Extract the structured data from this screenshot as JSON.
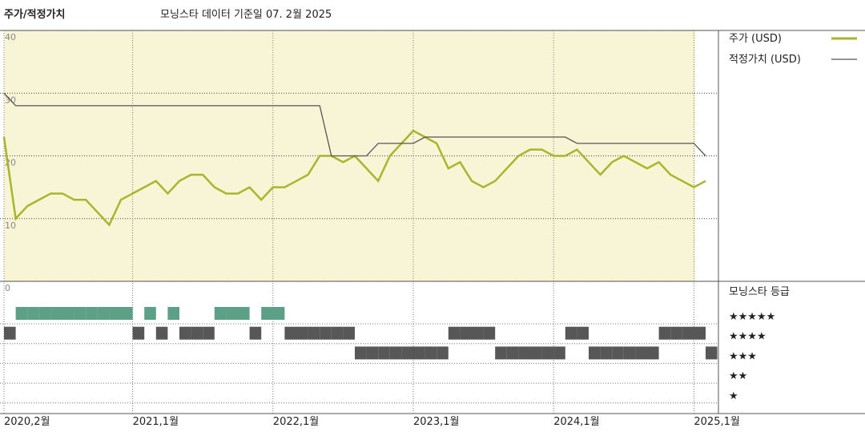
{
  "chart_data": {
    "type": "line",
    "title": "주가/적정가치",
    "subtitle": "모닝스타 데이터 기준일 07. 2월 2025",
    "x": [
      "2020-02",
      "2020-03",
      "2020-04",
      "2020-05",
      "2020-06",
      "2020-07",
      "2020-08",
      "2020-09",
      "2020-10",
      "2020-11",
      "2020-12",
      "2021-01",
      "2021-02",
      "2021-03",
      "2021-04",
      "2021-05",
      "2021-06",
      "2021-07",
      "2021-08",
      "2021-09",
      "2021-10",
      "2021-11",
      "2021-12",
      "2022-01",
      "2022-02",
      "2022-03",
      "2022-04",
      "2022-05",
      "2022-06",
      "2022-07",
      "2022-08",
      "2022-09",
      "2022-10",
      "2022-11",
      "2022-12",
      "2023-01",
      "2023-02",
      "2023-03",
      "2023-04",
      "2023-05",
      "2023-06",
      "2023-07",
      "2023-08",
      "2023-09",
      "2023-10",
      "2023-11",
      "2023-12",
      "2024-01",
      "2024-02",
      "2024-03",
      "2024-04",
      "2024-05",
      "2024-06",
      "2024-07",
      "2024-08",
      "2024-09",
      "2024-10",
      "2024-11",
      "2024-12",
      "2025-01",
      "2025-02"
    ],
    "series": [
      {
        "name": "주가 (USD)",
        "color": "#a9b52c",
        "values": [
          23,
          10,
          12,
          13,
          14,
          14,
          13,
          13,
          11,
          9,
          13,
          14,
          15,
          16,
          14,
          16,
          17,
          17,
          15,
          14,
          14,
          15,
          13,
          15,
          15,
          16,
          17,
          20,
          20,
          19,
          20,
          18,
          16,
          20,
          22,
          24,
          23,
          22,
          18,
          19,
          16,
          15,
          16,
          18,
          20,
          21,
          21,
          20,
          20,
          21,
          19,
          17,
          19,
          20,
          19,
          18,
          19,
          17,
          16,
          15,
          16
        ]
      },
      {
        "name": "적정가치 (USD)",
        "color": "#555555",
        "values": [
          30,
          28,
          28,
          28,
          28,
          28,
          28,
          28,
          28,
          28,
          28,
          28,
          28,
          28,
          28,
          28,
          28,
          28,
          28,
          28,
          28,
          28,
          28,
          28,
          28,
          28,
          28,
          28,
          20,
          20,
          20,
          20,
          22,
          22,
          22,
          22,
          23,
          23,
          23,
          23,
          23,
          23,
          23,
          23,
          23,
          23,
          23,
          23,
          23,
          22,
          22,
          22,
          22,
          22,
          22,
          22,
          22,
          22,
          22,
          22,
          20
        ]
      }
    ],
    "ylim": [
      0,
      40
    ],
    "yticks": [
      0,
      10,
      20,
      30,
      40
    ],
    "xticks": [
      {
        "value": "2020-02",
        "label": "2020,2월"
      },
      {
        "value": "2021-01",
        "label": "2021,1월"
      },
      {
        "value": "2022-01",
        "label": "2022,1월"
      },
      {
        "value": "2023-01",
        "label": "2023,1월"
      },
      {
        "value": "2024-01",
        "label": "2024,1월"
      },
      {
        "value": "2025-01",
        "label": "2025,1월"
      }
    ],
    "grid": true,
    "rating": {
      "title": "모닝스타 등급",
      "levels": [
        {
          "value": 5,
          "label": "★★★★★"
        },
        {
          "value": 4,
          "label": "★★★★"
        },
        {
          "value": 3,
          "label": "★★★"
        },
        {
          "value": 2,
          "label": "★★"
        },
        {
          "value": 1,
          "label": "★"
        }
      ],
      "values": [
        4,
        5,
        5,
        5,
        5,
        5,
        5,
        5,
        5,
        5,
        5,
        4,
        5,
        4,
        5,
        4,
        4,
        4,
        5,
        5,
        5,
        4,
        5,
        5,
        4,
        4,
        4,
        4,
        4,
        4,
        3,
        3,
        3,
        3,
        3,
        3,
        3,
        3,
        4,
        4,
        4,
        4,
        3,
        3,
        3,
        3,
        3,
        3,
        4,
        4,
        3,
        3,
        3,
        3,
        3,
        3,
        4,
        4,
        4,
        4,
        3
      ],
      "colors": {
        "5": "#3f8f72",
        "4": "#3a3a3a",
        "3": "#3a3a3a",
        "2": "#3a3a3a",
        "1": "#3a3a3a"
      }
    }
  }
}
